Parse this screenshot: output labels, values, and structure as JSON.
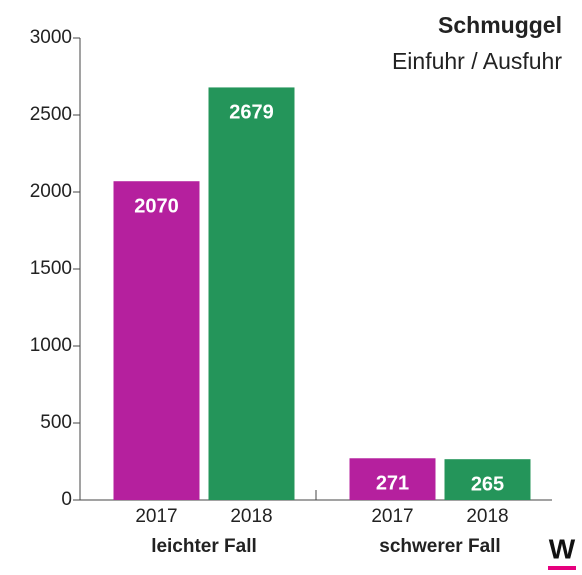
{
  "chart_data": {
    "type": "bar",
    "title": "Schmuggel",
    "subtitle": "Einfuhr / Ausfuhr",
    "categories": [
      "leichter Fall",
      "schwerer Fall"
    ],
    "series": [
      {
        "name": "2017",
        "color": "#b5209e",
        "values": [
          2070,
          271
        ]
      },
      {
        "name": "2018",
        "color": "#24955a",
        "values": [
          2679,
          265
        ]
      }
    ],
    "ylim": [
      0,
      3000
    ],
    "yticks": [
      0,
      500,
      1000,
      1500,
      2000,
      2500,
      3000
    ],
    "logo": "W"
  }
}
